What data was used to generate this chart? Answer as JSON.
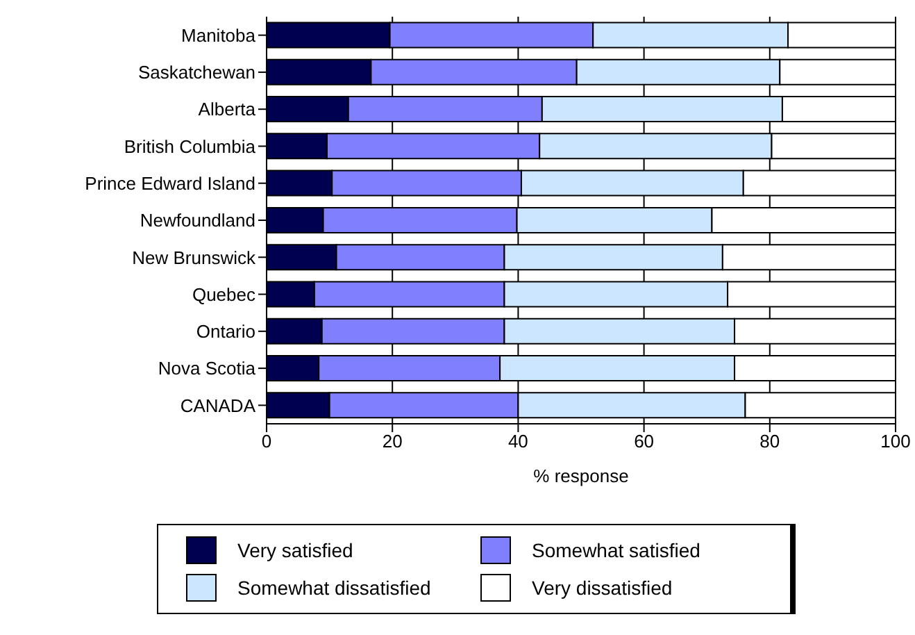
{
  "chart_data": {
    "type": "bar",
    "orientation": "horizontal",
    "stacked": true,
    "xlabel": "% response",
    "categories": [
      "Manitoba",
      "Saskatchewan",
      "Alberta",
      "British Columbia",
      "Prince Edward Island",
      "Newfoundland",
      "New Brunswick",
      "Quebec",
      "Ontario",
      "Nova Scotia",
      "CANADA"
    ],
    "series": [
      {
        "name": "Very satisfied",
        "color": "#000050",
        "values": [
          19.6,
          16.6,
          13.0,
          9.6,
          10.4,
          9.0,
          11.1,
          7.6,
          8.8,
          8.3,
          10.0
        ]
      },
      {
        "name": "Somewhat satisfied",
        "color": "#8080ff",
        "values": [
          32.3,
          32.7,
          30.8,
          33.8,
          30.1,
          30.8,
          26.7,
          30.2,
          29.0,
          28.8,
          30.0
        ]
      },
      {
        "name": "Somewhat dissatisfied",
        "color": "#cce6ff",
        "values": [
          31.0,
          32.3,
          38.2,
          36.9,
          35.3,
          31.0,
          34.7,
          35.5,
          36.6,
          37.3,
          36.1
        ]
      },
      {
        "name": "Very dissatisfied",
        "color": "#ffffff",
        "values": [
          17.1,
          18.4,
          18.0,
          19.7,
          24.2,
          29.2,
          27.5,
          26.7,
          25.6,
          25.6,
          23.9
        ]
      }
    ],
    "xlim": [
      0,
      100
    ],
    "xticks": [
      0,
      20,
      40,
      60,
      80,
      100
    ],
    "grid": "x",
    "legend": "bottom"
  }
}
